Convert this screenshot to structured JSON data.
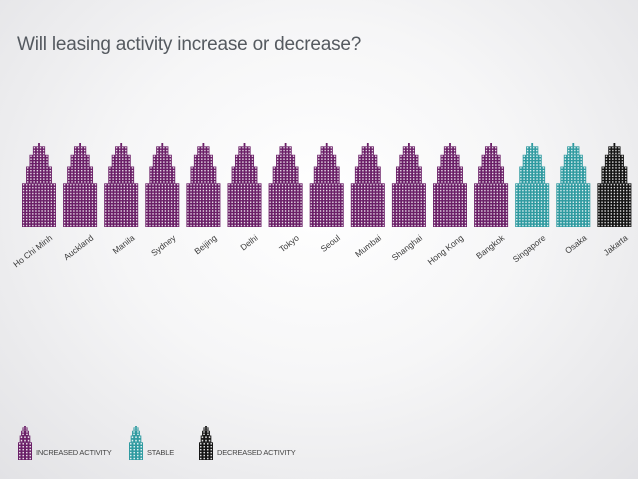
{
  "title": "Will leasing activity increase or decrease?",
  "colors": {
    "increased": "#6a1f67",
    "stable": "#2f9aa0",
    "decreased": "#141414"
  },
  "legend": {
    "increased": "INCREASED ACTIVITY",
    "stable": "STABLE",
    "decreased": "DECREASED ACTIVITY"
  },
  "chart_data": {
    "type": "pictogram",
    "title": "Will leasing activity increase or decrease?",
    "categories": [
      "Ho Chi Minh",
      "Auckland",
      "Manila",
      "Sydney",
      "Beijing",
      "Delhi",
      "Tokyo",
      "Seoul",
      "Mumbai",
      "Shanghai",
      "Hong Kong",
      "Bangkok",
      "Singapore",
      "Osaka",
      "Jakarta"
    ],
    "values": [
      "increased",
      "increased",
      "increased",
      "increased",
      "increased",
      "increased",
      "increased",
      "increased",
      "increased",
      "increased",
      "increased",
      "increased",
      "stable",
      "stable",
      "decreased"
    ],
    "legend": [
      "INCREASED ACTIVITY",
      "STABLE",
      "DECREASED ACTIVITY"
    ],
    "legend_position": "bottom-left"
  }
}
